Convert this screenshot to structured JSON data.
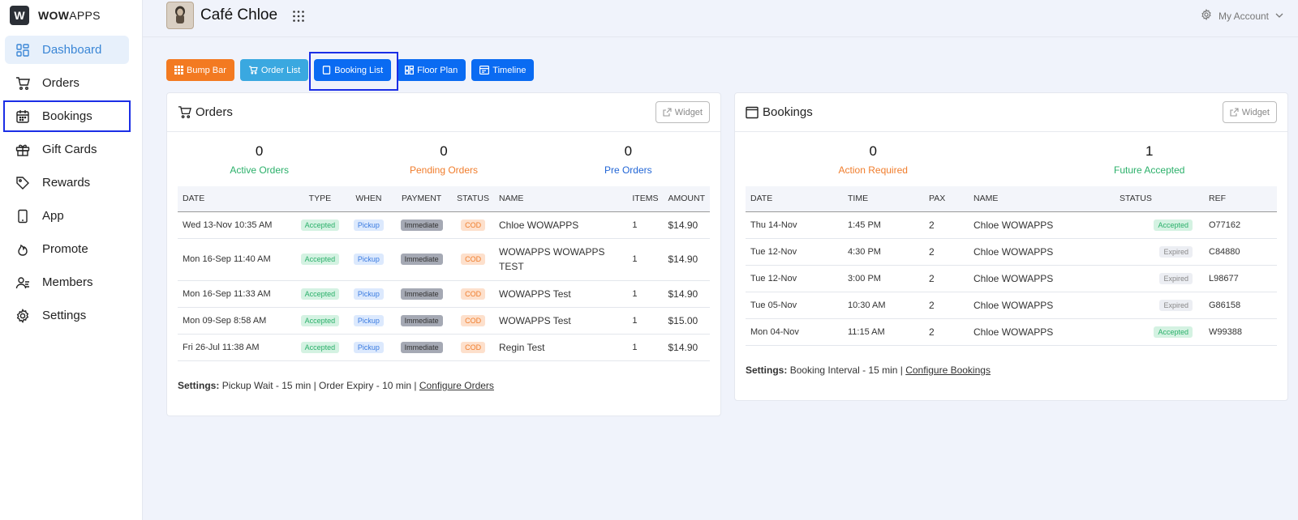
{
  "brand": {
    "logo_letter": "W",
    "name_bold": "WOW",
    "name_rest": "APPS"
  },
  "sidebar": {
    "items": [
      {
        "label": "Dashboard",
        "icon": "dashboard-icon"
      },
      {
        "label": "Orders",
        "icon": "cart-icon"
      },
      {
        "label": "Bookings",
        "icon": "calendar-icon"
      },
      {
        "label": "Gift Cards",
        "icon": "gift-icon"
      },
      {
        "label": "Rewards",
        "icon": "tag-icon"
      },
      {
        "label": "App",
        "icon": "phone-icon"
      },
      {
        "label": "Promote",
        "icon": "flame-icon"
      },
      {
        "label": "Members",
        "icon": "members-icon"
      },
      {
        "label": "Settings",
        "icon": "gear-icon"
      }
    ]
  },
  "header": {
    "venue_name": "Café Chloe",
    "account_label": "My Account"
  },
  "toolbar": {
    "bump_bar": "Bump Bar",
    "order_list": "Order List",
    "booking_list": "Booking List",
    "floor_plan": "Floor Plan",
    "timeline": "Timeline"
  },
  "orders_card": {
    "title": "Orders",
    "widget_label": "Widget",
    "stats": [
      {
        "value": "0",
        "label": "Active Orders",
        "color": "#2bb06a"
      },
      {
        "value": "0",
        "label": "Pending Orders",
        "color": "#f07d2c"
      },
      {
        "value": "0",
        "label": "Pre Orders",
        "color": "#2266d6"
      }
    ],
    "columns": [
      "DATE",
      "TYPE",
      "WHEN",
      "PAYMENT",
      "STATUS",
      "NAME",
      "ITEMS",
      "AMOUNT"
    ],
    "rows": [
      {
        "date": "Wed 13-Nov 10:35 AM",
        "type": "Accepted",
        "when": "Pickup",
        "payment": "Immediate",
        "status": "COD",
        "name": "Chloe WOWAPPS",
        "items": "1",
        "amount": "$14.90"
      },
      {
        "date": "Mon 16-Sep 11:40 AM",
        "type": "Accepted",
        "when": "Pickup",
        "payment": "Immediate",
        "status": "COD",
        "name": "WOWAPPS WOWAPPS TEST",
        "items": "1",
        "amount": "$14.90"
      },
      {
        "date": "Mon 16-Sep 11:33 AM",
        "type": "Accepted",
        "when": "Pickup",
        "payment": "Immediate",
        "status": "COD",
        "name": "WOWAPPS Test",
        "items": "1",
        "amount": "$14.90"
      },
      {
        "date": "Mon 09-Sep 8:58 AM",
        "type": "Accepted",
        "when": "Pickup",
        "payment": "Immediate",
        "status": "COD",
        "name": "WOWAPPS Test",
        "items": "1",
        "amount": "$15.00"
      },
      {
        "date": "Fri 26-Jul 11:38 AM",
        "type": "Accepted",
        "when": "Pickup",
        "payment": "Immediate",
        "status": "COD",
        "name": "Regin Test",
        "items": "1",
        "amount": "$14.90"
      }
    ],
    "settings_label": "Settings:",
    "settings_text": "Pickup Wait - 15 min | Order Expiry - 10 min |",
    "settings_link": "Configure Orders"
  },
  "bookings_card": {
    "title": "Bookings",
    "widget_label": "Widget",
    "stats": [
      {
        "value": "0",
        "label": "Action Required",
        "color": "#f07d2c"
      },
      {
        "value": "1",
        "label": "Future Accepted",
        "color": "#2bb06a"
      }
    ],
    "columns": [
      "DATE",
      "TIME",
      "PAX",
      "NAME",
      "STATUS",
      "REF"
    ],
    "rows": [
      {
        "date": "Thu 14-Nov",
        "time": "1:45 PM",
        "pax": "2",
        "name": "Chloe WOWAPPS",
        "status": "Accepted",
        "ref": "O77162"
      },
      {
        "date": "Tue 12-Nov",
        "time": "4:30 PM",
        "pax": "2",
        "name": "Chloe WOWAPPS",
        "status": "Expired",
        "ref": "C84880"
      },
      {
        "date": "Tue 12-Nov",
        "time": "3:00 PM",
        "pax": "2",
        "name": "Chloe WOWAPPS",
        "status": "Expired",
        "ref": "L98677"
      },
      {
        "date": "Tue 05-Nov",
        "time": "10:30 AM",
        "pax": "2",
        "name": "Chloe WOWAPPS",
        "status": "Expired",
        "ref": "G86158"
      },
      {
        "date": "Mon 04-Nov",
        "time": "11:15 AM",
        "pax": "2",
        "name": "Chloe WOWAPPS",
        "status": "Accepted",
        "ref": "W99388"
      }
    ],
    "settings_label": "Settings:",
    "settings_text": "Booking Interval - 15 min |",
    "settings_link": "Configure Bookings"
  }
}
